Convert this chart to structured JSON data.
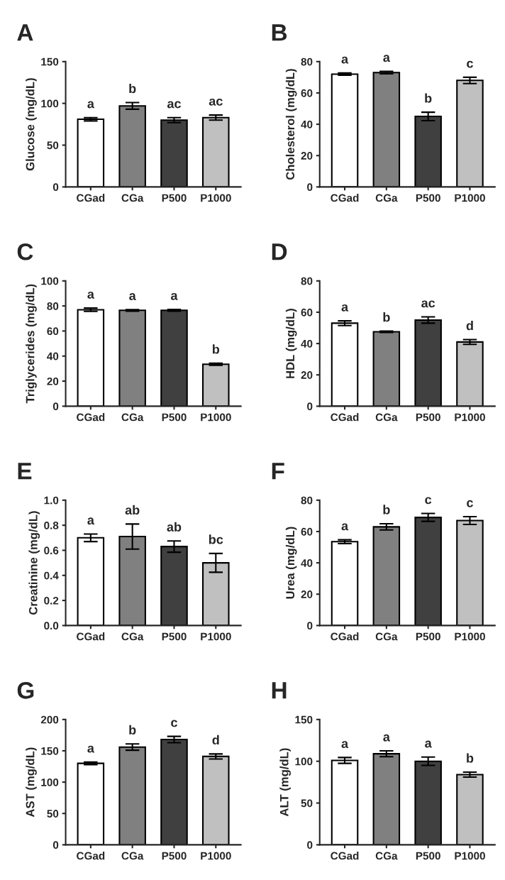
{
  "chart_data": [
    {
      "type": "bar",
      "title": "A",
      "ylabel": "Glucose (mg/dL)",
      "categories": [
        "CGad",
        "CGa",
        "P500",
        "P1000"
      ],
      "values": [
        81,
        97,
        80,
        83
      ],
      "errors": [
        2,
        4,
        3,
        3
      ],
      "colors": [
        "#ffffff",
        "#808080",
        "#404040",
        "#c0c0c0"
      ],
      "ylim": [
        0,
        150
      ],
      "yticks": [
        0,
        50,
        100,
        150
      ],
      "annotations": [
        "a",
        "b",
        "ac",
        "ac"
      ]
    },
    {
      "type": "bar",
      "title": "B",
      "ylabel": "Cholesterol (mg/dL)",
      "categories": [
        "CGad",
        "CGa",
        "P500",
        "P1000"
      ],
      "values": [
        72,
        73,
        45,
        68
      ],
      "errors": [
        0.7,
        0.8,
        2.7,
        2
      ],
      "colors": [
        "#ffffff",
        "#808080",
        "#404040",
        "#c0c0c0"
      ],
      "ylim": [
        0,
        80
      ],
      "yticks": [
        0,
        20,
        40,
        60,
        80
      ],
      "annotations": [
        "a",
        "a",
        "b",
        "c"
      ]
    },
    {
      "type": "bar",
      "title": "C",
      "ylabel": "Triglycerides (mg/dL)",
      "categories": [
        "CGad",
        "CGa",
        "P500",
        "P1000"
      ],
      "values": [
        77,
        76.5,
        76.5,
        33.5
      ],
      "errors": [
        1.3,
        0.6,
        0.7,
        0.8
      ],
      "colors": [
        "#ffffff",
        "#808080",
        "#404040",
        "#c0c0c0"
      ],
      "ylim": [
        0,
        100
      ],
      "yticks": [
        0,
        20,
        40,
        60,
        80,
        100
      ],
      "annotations": [
        "a",
        "a",
        "a",
        "b"
      ]
    },
    {
      "type": "bar",
      "title": "D",
      "ylabel": "HDL (mg/dL)",
      "categories": [
        "CGad",
        "CGa",
        "P500",
        "P1000"
      ],
      "values": [
        53,
        47.5,
        55,
        41
      ],
      "errors": [
        1.5,
        0.4,
        2,
        1.5
      ],
      "colors": [
        "#ffffff",
        "#808080",
        "#404040",
        "#c0c0c0"
      ],
      "ylim": [
        0,
        80
      ],
      "yticks": [
        0,
        20,
        40,
        60,
        80
      ],
      "annotations": [
        "a",
        "b",
        "ac",
        "d"
      ]
    },
    {
      "type": "bar",
      "title": "E",
      "ylabel": "Creatinine (mg/dL)",
      "categories": [
        "CGad",
        "CGa",
        "P500",
        "P1000"
      ],
      "values": [
        0.7,
        0.71,
        0.63,
        0.5
      ],
      "errors": [
        0.03,
        0.1,
        0.045,
        0.075
      ],
      "colors": [
        "#ffffff",
        "#808080",
        "#404040",
        "#c0c0c0"
      ],
      "ylim": [
        0,
        1.0
      ],
      "yticks": [
        {
          "value": 0,
          "label": "0.0"
        },
        0.2,
        0.4,
        0.6,
        0.8,
        {
          "value": 1,
          "label": "1.0"
        }
      ],
      "annotations": [
        "a",
        "ab",
        "ab",
        "bc"
      ]
    },
    {
      "type": "bar",
      "title": "F",
      "ylabel": "Urea (mg/dL)",
      "categories": [
        "CGad",
        "CGa",
        "P500",
        "P1000"
      ],
      "values": [
        53.5,
        63,
        69,
        67
      ],
      "errors": [
        1.2,
        2,
        2.5,
        2.5
      ],
      "colors": [
        "#ffffff",
        "#808080",
        "#404040",
        "#c0c0c0"
      ],
      "ylim": [
        0,
        80
      ],
      "yticks": [
        0,
        20,
        40,
        60,
        80
      ],
      "annotations": [
        "a",
        "b",
        "c",
        "c"
      ]
    },
    {
      "type": "bar",
      "title": "G",
      "ylabel": "AST (mg/dL)",
      "categories": [
        "CGad",
        "CGa",
        "P500",
        "P1000"
      ],
      "values": [
        130,
        156,
        168,
        141
      ],
      "errors": [
        2,
        5,
        5,
        4
      ],
      "colors": [
        "#ffffff",
        "#808080",
        "#404040",
        "#c0c0c0"
      ],
      "ylim": [
        0,
        200
      ],
      "yticks": [
        0,
        50,
        100,
        150,
        200
      ],
      "annotations": [
        "a",
        "b",
        "c",
        "d"
      ]
    },
    {
      "type": "bar",
      "title": "H",
      "ylabel": "ALT (mg/dL)",
      "categories": [
        "CGad",
        "CGa",
        "P500",
        "P1000"
      ],
      "values": [
        101,
        109,
        100,
        84
      ],
      "errors": [
        3.5,
        3.5,
        5,
        3
      ],
      "colors": [
        "#ffffff",
        "#808080",
        "#404040",
        "#c0c0c0"
      ],
      "ylim": [
        0,
        150
      ],
      "yticks": [
        0,
        50,
        100,
        150
      ],
      "annotations": [
        "a",
        "a",
        "a",
        "b"
      ]
    }
  ]
}
